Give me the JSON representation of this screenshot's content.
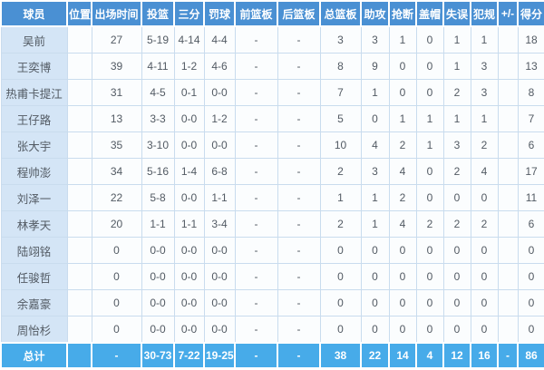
{
  "chart_data": {
    "type": "table",
    "columns": [
      "球员",
      "位置",
      "出场时间",
      "投篮",
      "三分",
      "罚球",
      "前篮板",
      "后篮板",
      "总篮板",
      "助攻",
      "抢断",
      "盖帽",
      "失误",
      "犯规",
      "+/-",
      "得分"
    ],
    "rows": [
      [
        "吴前",
        "",
        "27",
        "5-19",
        "4-14",
        "4-4",
        "-",
        "-",
        "3",
        "3",
        "1",
        "0",
        "1",
        "1",
        "",
        "18"
      ],
      [
        "王奕博",
        "",
        "39",
        "4-11",
        "1-2",
        "4-6",
        "-",
        "-",
        "8",
        "9",
        "0",
        "0",
        "1",
        "3",
        "",
        "13"
      ],
      [
        "热甫卡提江",
        "",
        "31",
        "4-5",
        "0-1",
        "0-0",
        "-",
        "-",
        "7",
        "1",
        "0",
        "0",
        "2",
        "3",
        "",
        "8"
      ],
      [
        "王仔路",
        "",
        "13",
        "3-3",
        "0-0",
        "1-2",
        "-",
        "-",
        "5",
        "0",
        "1",
        "1",
        "1",
        "1",
        "",
        "7"
      ],
      [
        "张大宇",
        "",
        "35",
        "3-10",
        "0-0",
        "0-0",
        "-",
        "-",
        "10",
        "4",
        "2",
        "1",
        "3",
        "2",
        "",
        "6"
      ],
      [
        "程帅澎",
        "",
        "34",
        "5-16",
        "1-4",
        "6-8",
        "-",
        "-",
        "2",
        "3",
        "4",
        "0",
        "2",
        "4",
        "",
        "17"
      ],
      [
        "刘泽一",
        "",
        "22",
        "5-8",
        "0-0",
        "1-1",
        "-",
        "-",
        "1",
        "1",
        "2",
        "0",
        "0",
        "0",
        "",
        "11"
      ],
      [
        "林孝天",
        "",
        "20",
        "1-1",
        "1-1",
        "3-4",
        "-",
        "-",
        "2",
        "1",
        "4",
        "2",
        "2",
        "2",
        "",
        "6"
      ],
      [
        "陆翊铭",
        "",
        "0",
        "0-0",
        "0-0",
        "0-0",
        "-",
        "-",
        "0",
        "0",
        "0",
        "0",
        "0",
        "0",
        "",
        "0"
      ],
      [
        "任骏哲",
        "",
        "0",
        "0-0",
        "0-0",
        "0-0",
        "-",
        "-",
        "0",
        "0",
        "0",
        "0",
        "0",
        "0",
        "",
        "0"
      ],
      [
        "余嘉豪",
        "",
        "0",
        "0-0",
        "0-0",
        "0-0",
        "-",
        "-",
        "0",
        "0",
        "0",
        "0",
        "0",
        "0",
        "",
        "0"
      ],
      [
        "周怡杉",
        "",
        "0",
        "0-0",
        "0-0",
        "0-0",
        "-",
        "-",
        "0",
        "0",
        "0",
        "0",
        "0",
        "0",
        "",
        "0"
      ]
    ],
    "totals": [
      "总计",
      "",
      "-",
      "30-73",
      "7-22",
      "19-25",
      "-",
      "-",
      "38",
      "22",
      "14",
      "4",
      "12",
      "16",
      "-",
      "86"
    ]
  },
  "colors": {
    "header_bg": "#4a90d3",
    "header_text": "#ffffff",
    "totals_bg": "#47abe9",
    "name_col_bg": "#d4e5f6",
    "row_bg": "#fbfdfe",
    "grid_line": "#c9dcee",
    "body_text": "#525a63"
  }
}
